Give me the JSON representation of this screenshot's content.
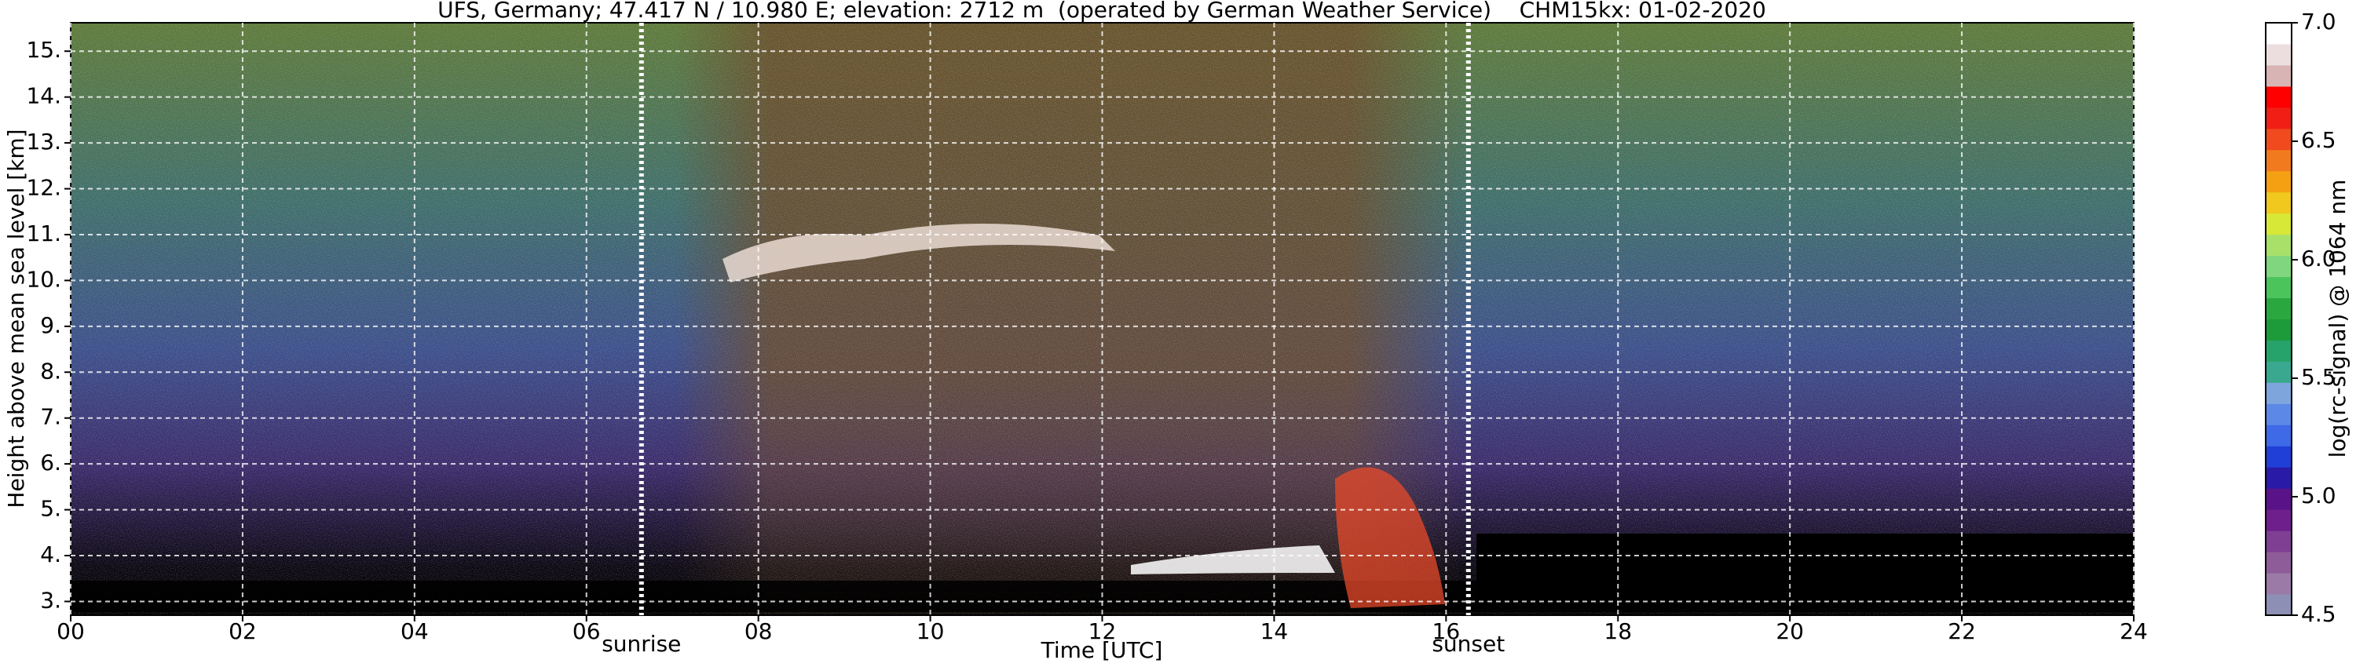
{
  "chart_data": {
    "type": "heatmap",
    "title": "UFS, Germany; 47.417 N / 10.980 E; elevation: 2712 m  (operated by German Weather Service)    CHM15kx: 01-02-2020",
    "x_label": "Time [UTC]",
    "y_label": "Height above mean sea level [km]",
    "xlim": [
      0,
      24
    ],
    "xticks": [
      {
        "value": 0,
        "label": "00"
      },
      {
        "value": 2,
        "label": "02"
      },
      {
        "value": 4,
        "label": "04"
      },
      {
        "value": 6,
        "label": "06"
      },
      {
        "value": 8,
        "label": "08"
      },
      10,
      12,
      14,
      16,
      18,
      20,
      22,
      24
    ],
    "ylim": [
      2.7,
      15.62
    ],
    "yticks": [
      {
        "value": 3,
        "label": "3."
      },
      {
        "value": 4,
        "label": "4."
      },
      {
        "value": 5,
        "label": "5."
      },
      {
        "value": 6,
        "label": "6."
      },
      {
        "value": 7,
        "label": "7."
      },
      {
        "value": 8,
        "label": "8."
      },
      {
        "value": 9,
        "label": "9."
      },
      {
        "value": 10,
        "label": "10."
      },
      {
        "value": 11,
        "label": "11."
      },
      {
        "value": 12,
        "label": "12."
      },
      {
        "value": 13,
        "label": "13."
      },
      {
        "value": 14,
        "label": "14."
      },
      {
        "value": 15,
        "label": "15."
      }
    ],
    "grid": true,
    "annotations": [
      {
        "text": "sunrise",
        "x": 6.64
      },
      {
        "text": "sunset",
        "x": 16.26
      }
    ],
    "colorbar": {
      "label": "log(rc-signal) @ 1064 nm",
      "lim": [
        4.5,
        7.0
      ],
      "ticks": [
        4.5,
        {
          "value": 5,
          "label": "5.0"
        },
        5.5,
        {
          "value": 6,
          "label": "6.0"
        },
        6.5,
        {
          "value": 7,
          "label": "7.0"
        }
      ],
      "colors": [
        "#8e8fb5",
        "#9b7aa8",
        "#8f5c9a",
        "#7f3f92",
        "#6e1f8c",
        "#5a1289",
        "#2a1aa8",
        "#1f3fd6",
        "#3e6ae8",
        "#5c88e8",
        "#7ea6dc",
        "#3aa88e",
        "#26a36b",
        "#1d9a3a",
        "#2aa83f",
        "#4cc45c",
        "#7fd67f",
        "#a8e06a",
        "#d8e836",
        "#f0c81e",
        "#f5a012",
        "#f27a1e",
        "#f04a1e",
        "#f01e14",
        "#ff0000",
        "#d8b4b4",
        "#ecdede",
        "#ffffff"
      ]
    }
  }
}
